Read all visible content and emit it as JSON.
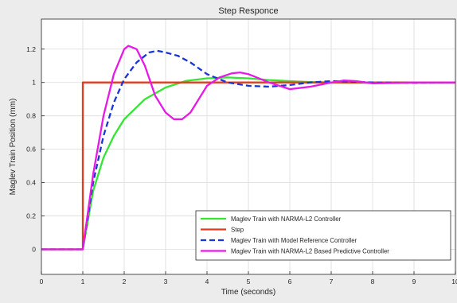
{
  "chart_data": {
    "type": "line",
    "title": "Step Responce",
    "xlabel": "Time (seconds)",
    "ylabel": "Maglev Train Position (mm)",
    "xlim": [
      0,
      10
    ],
    "ylim": [
      -0.15,
      1.38
    ],
    "xticks": [
      0,
      1,
      2,
      3,
      4,
      5,
      6,
      7,
      8,
      9,
      10
    ],
    "xtick_labels": [
      "0",
      "1",
      "2",
      "3",
      "4",
      "5",
      "6",
      "7",
      "8",
      "9",
      "10"
    ],
    "yticks": [
      0,
      0.2,
      0.4,
      0.6,
      0.8,
      1,
      1.2
    ],
    "ytick_labels": [
      "0",
      "0.2",
      "0.4",
      "0.6",
      "0.8",
      "1",
      "1.2"
    ],
    "grid": true,
    "legend_position": "bottom-right",
    "series": [
      {
        "name": "Maglev Train with NARMA-L2 Controller",
        "color": "#33e633",
        "style": "solid",
        "x": [
          0,
          1,
          1.25,
          1.5,
          1.75,
          2,
          2.5,
          3,
          3.5,
          4,
          4.5,
          5,
          5.5,
          6,
          6.5,
          7,
          7.5,
          8,
          9,
          10
        ],
        "y": [
          0,
          0,
          0.35,
          0.55,
          0.68,
          0.78,
          0.9,
          0.97,
          1.01,
          1.025,
          1.03,
          1.025,
          1.015,
          1.008,
          1.003,
          1.0,
          0.998,
          0.999,
          1.0,
          1.0
        ]
      },
      {
        "name": "Step",
        "color": "#e03c1e",
        "style": "solid",
        "x": [
          0,
          1,
          1,
          10
        ],
        "y": [
          0,
          0,
          1,
          1
        ]
      },
      {
        "name": "Maglev Train with Model Reference Controller",
        "color": "#1a34d6",
        "style": "dashed",
        "x": [
          0,
          1,
          1.25,
          1.5,
          1.75,
          2,
          2.3,
          2.6,
          2.8,
          3,
          3.3,
          3.6,
          4,
          4.5,
          5,
          5.5,
          6,
          6.5,
          7,
          7.5,
          8,
          9,
          10
        ],
        "y": [
          0,
          0,
          0.4,
          0.68,
          0.88,
          1.02,
          1.12,
          1.18,
          1.19,
          1.18,
          1.16,
          1.12,
          1.05,
          1.0,
          0.98,
          0.975,
          0.985,
          1.0,
          1.008,
          1.005,
          1.0,
          0.998,
          1.0
        ]
      },
      {
        "name": "Maglev Train with NARMA-L2 Based Predictive Controller",
        "color": "#e619e6",
        "style": "solid",
        "x": [
          0,
          1,
          1.25,
          1.5,
          1.75,
          2,
          2.1,
          2.3,
          2.5,
          2.75,
          3,
          3.2,
          3.4,
          3.6,
          3.8,
          4,
          4.3,
          4.6,
          4.8,
          5,
          5.5,
          6,
          6.5,
          7,
          7.3,
          7.6,
          8,
          8.5,
          9,
          10
        ],
        "y": [
          0,
          0,
          0.45,
          0.8,
          1.05,
          1.2,
          1.22,
          1.2,
          1.1,
          0.92,
          0.82,
          0.78,
          0.78,
          0.82,
          0.9,
          0.98,
          1.03,
          1.055,
          1.06,
          1.05,
          1.0,
          0.96,
          0.975,
          1.0,
          1.012,
          1.008,
          0.995,
          0.997,
          1.0,
          1.0
        ]
      }
    ]
  }
}
